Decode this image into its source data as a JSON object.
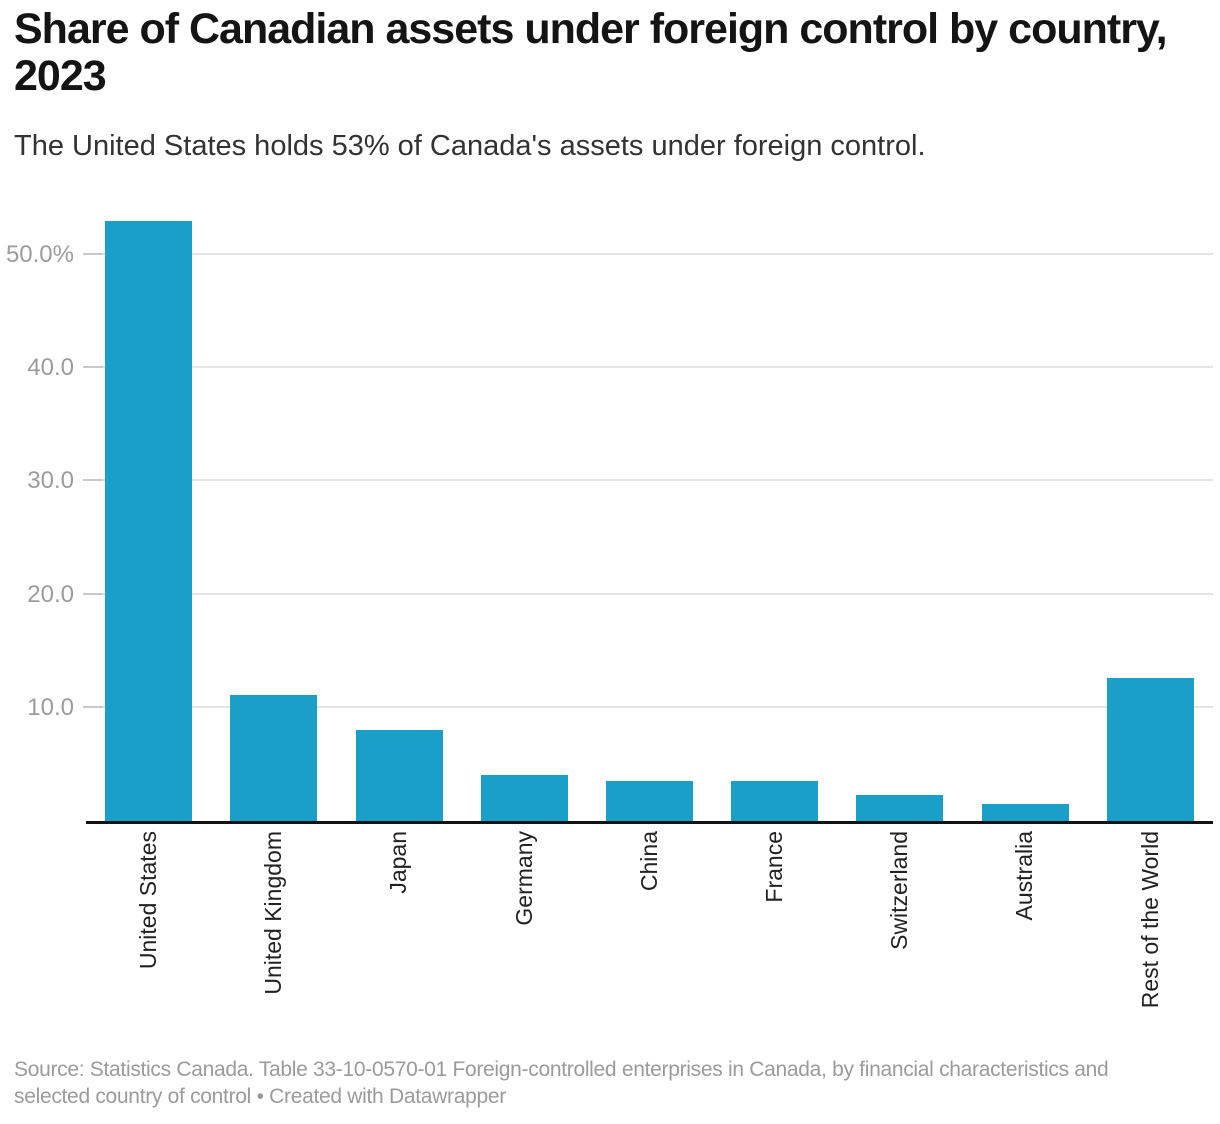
{
  "header": {
    "title_line1": "Share of Canadian assets under foreign control by country,",
    "title_line2": "2023",
    "subtitle": "The United States holds 53% of Canada's assets under foreign control."
  },
  "chart_data": {
    "type": "bar",
    "title": "Share of Canadian assets under foreign control by country, 2023",
    "subtitle": "The United States holds 53% of Canada's assets under foreign control.",
    "categories": [
      "United States",
      "United Kingdom",
      "Japan",
      "Germany",
      "China",
      "France",
      "Switzerland",
      "Australia",
      "Rest of the World"
    ],
    "values": [
      53.0,
      11.1,
      8.0,
      4.1,
      3.5,
      3.5,
      2.3,
      1.5,
      12.6
    ],
    "unit": "%",
    "xlabel": "",
    "ylabel": "",
    "ylim": [
      0,
      53
    ],
    "y_ticks": [
      {
        "value": 10,
        "label": "10.0"
      },
      {
        "value": 20,
        "label": "20.0"
      },
      {
        "value": 30,
        "label": "30.0"
      },
      {
        "value": 40,
        "label": "40.0"
      },
      {
        "value": 50,
        "label": "50.0%"
      }
    ],
    "grid": "horizontal",
    "legend": "none",
    "bar_color": "#1A9FC9"
  },
  "colors": {
    "bar": "#1A9FC9",
    "axis": "#121212",
    "gridline": "#e5e5e5",
    "tick_mark": "#c9c9c9",
    "tick_label": "#9c9c9c",
    "category_label": "#222222",
    "muted_text": "#9b9b9b",
    "title_text": "#141414"
  },
  "footer": {
    "line1": "Source: Statistics Canada. Table 33-10-0570-01 Foreign-controlled enterprises in Canada, by financial characteristics and",
    "line2": "selected country of control • Created with Datawrapper"
  }
}
